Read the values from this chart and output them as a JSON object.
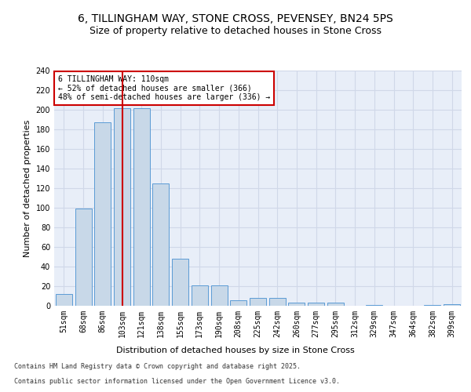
{
  "title_line1": "6, TILLINGHAM WAY, STONE CROSS, PEVENSEY, BN24 5PS",
  "title_line2": "Size of property relative to detached houses in Stone Cross",
  "xlabel": "Distribution of detached houses by size in Stone Cross",
  "ylabel": "Number of detached properties",
  "categories": [
    "51sqm",
    "68sqm",
    "86sqm",
    "103sqm",
    "121sqm",
    "138sqm",
    "155sqm",
    "173sqm",
    "190sqm",
    "208sqm",
    "225sqm",
    "242sqm",
    "260sqm",
    "277sqm",
    "295sqm",
    "312sqm",
    "329sqm",
    "347sqm",
    "364sqm",
    "382sqm",
    "399sqm"
  ],
  "values": [
    12,
    99,
    187,
    202,
    202,
    125,
    48,
    21,
    21,
    6,
    8,
    8,
    3,
    3,
    3,
    0,
    1,
    0,
    0,
    1,
    2
  ],
  "bar_color": "#c8d8e8",
  "bar_edge_color": "#5b9bd5",
  "vline_x": 3,
  "vline_color": "#cc0000",
  "annotation_text": "6 TILLINGHAM WAY: 110sqm\n← 52% of detached houses are smaller (366)\n48% of semi-detached houses are larger (336) →",
  "annotation_box_color": "#ffffff",
  "annotation_box_edge": "#cc0000",
  "ylim": [
    0,
    240
  ],
  "yticks": [
    0,
    20,
    40,
    60,
    80,
    100,
    120,
    140,
    160,
    180,
    200,
    220,
    240
  ],
  "grid_color": "#d0d8e8",
  "background_color": "#e8eef8",
  "footer_line1": "Contains HM Land Registry data © Crown copyright and database right 2025.",
  "footer_line2": "Contains public sector information licensed under the Open Government Licence v3.0.",
  "title_fontsize": 10,
  "subtitle_fontsize": 9,
  "axis_label_fontsize": 8,
  "tick_fontsize": 7,
  "annotation_fontsize": 7,
  "footer_fontsize": 6
}
